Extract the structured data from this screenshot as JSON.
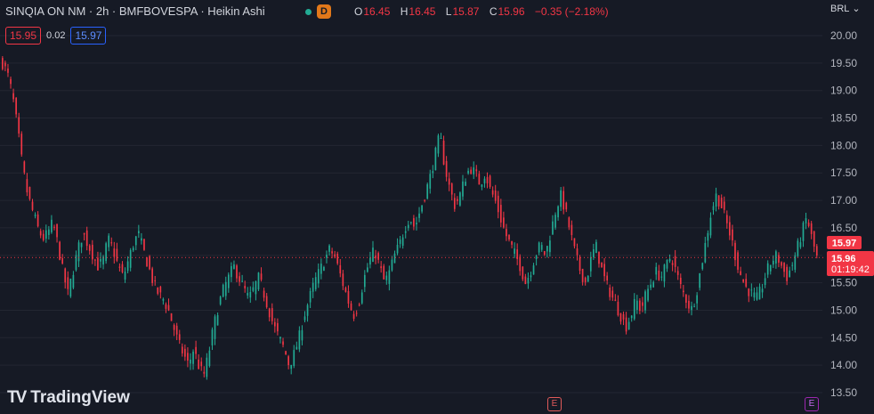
{
  "header": {
    "symbol_line": "SINQIA ON NM · 2h · BMFBOVESPA · Heikin Ashi",
    "status_badge": "D"
  },
  "ohlc": {
    "open_label": "O",
    "open": "16.45",
    "high_label": "H",
    "high": "16.45",
    "low_label": "L",
    "low": "15.87",
    "close_label": "C",
    "close": "15.96",
    "change": "−0.35 (−2.18%)"
  },
  "quote": {
    "bid": "15.95",
    "spread": "0.02",
    "ask": "15.97"
  },
  "currency": {
    "label": "BRL",
    "icon": "chevron-down-icon"
  },
  "price_tags": {
    "ask": "15.97",
    "last": "15.96",
    "countdown": "01:19:42"
  },
  "events": {
    "e_label_1": "E",
    "e_label_2": "E"
  },
  "brand": {
    "name": "TradingView"
  },
  "colors": {
    "up": "#22ab94",
    "down": "#f23645",
    "background": "#161a25",
    "grid": "#232632",
    "ask_tag": "#2962ff"
  },
  "chart_data": {
    "type": "candlestick",
    "ylim": [
      13.5,
      20.0
    ],
    "y_ticks": [
      "13.50",
      "14.00",
      "14.50",
      "15.00",
      "15.50",
      "16.00",
      "16.50",
      "17.00",
      "17.50",
      "18.00",
      "18.50",
      "19.00",
      "19.50",
      "20.00"
    ],
    "last_price": 15.96,
    "close_path": [
      19.5,
      19.3,
      18.9,
      18.3,
      17.6,
      17.1,
      16.8,
      16.5,
      16.3,
      16.4,
      16.6,
      16.2,
      15.7,
      15.3,
      15.7,
      16.1,
      16.4,
      16.2,
      16.0,
      15.8,
      15.9,
      16.3,
      16.1,
      15.8,
      15.6,
      15.9,
      16.2,
      16.4,
      16.1,
      15.8,
      15.5,
      15.3,
      15.2,
      15.0,
      14.7,
      14.4,
      14.2,
      14.0,
      14.3,
      14.0,
      13.8,
      14.2,
      14.7,
      15.1,
      15.4,
      15.6,
      15.8,
      15.6,
      15.4,
      15.2,
      15.4,
      15.6,
      15.3,
      15.0,
      14.7,
      14.5,
      14.3,
      14.0,
      14.2,
      14.5,
      14.9,
      15.2,
      15.5,
      15.7,
      15.9,
      16.1,
      16.0,
      15.7,
      15.4,
      15.1,
      14.9,
      15.2,
      15.6,
      15.9,
      16.1,
      15.8,
      15.5,
      15.7,
      16.0,
      16.2,
      16.5,
      16.7,
      16.5,
      16.8,
      17.1,
      17.4,
      17.8,
      18.2,
      17.6,
      17.2,
      16.9,
      17.1,
      17.4,
      17.6,
      17.5,
      17.3,
      17.5,
      17.2,
      17.0,
      16.7,
      16.4,
      16.2,
      16.0,
      15.8,
      15.5,
      15.7,
      16.0,
      16.2,
      16.0,
      16.4,
      16.8,
      17.1,
      16.8,
      16.4,
      16.0,
      15.7,
      15.5,
      15.9,
      16.2,
      15.8,
      15.5,
      15.3,
      15.1,
      14.9,
      14.7,
      14.9,
      15.2,
      15.0,
      15.3,
      15.5,
      15.7,
      15.6,
      15.8,
      16.0,
      15.7,
      15.4,
      15.2,
      15.0,
      15.3,
      15.8,
      16.3,
      16.8,
      17.1,
      16.9,
      16.6,
      16.3,
      15.9,
      15.6,
      15.4,
      15.3,
      15.2,
      15.4,
      15.7,
      15.9,
      16.0,
      15.8,
      15.6,
      15.8,
      16.1,
      16.4,
      16.7,
      16.3,
      15.96
    ]
  }
}
